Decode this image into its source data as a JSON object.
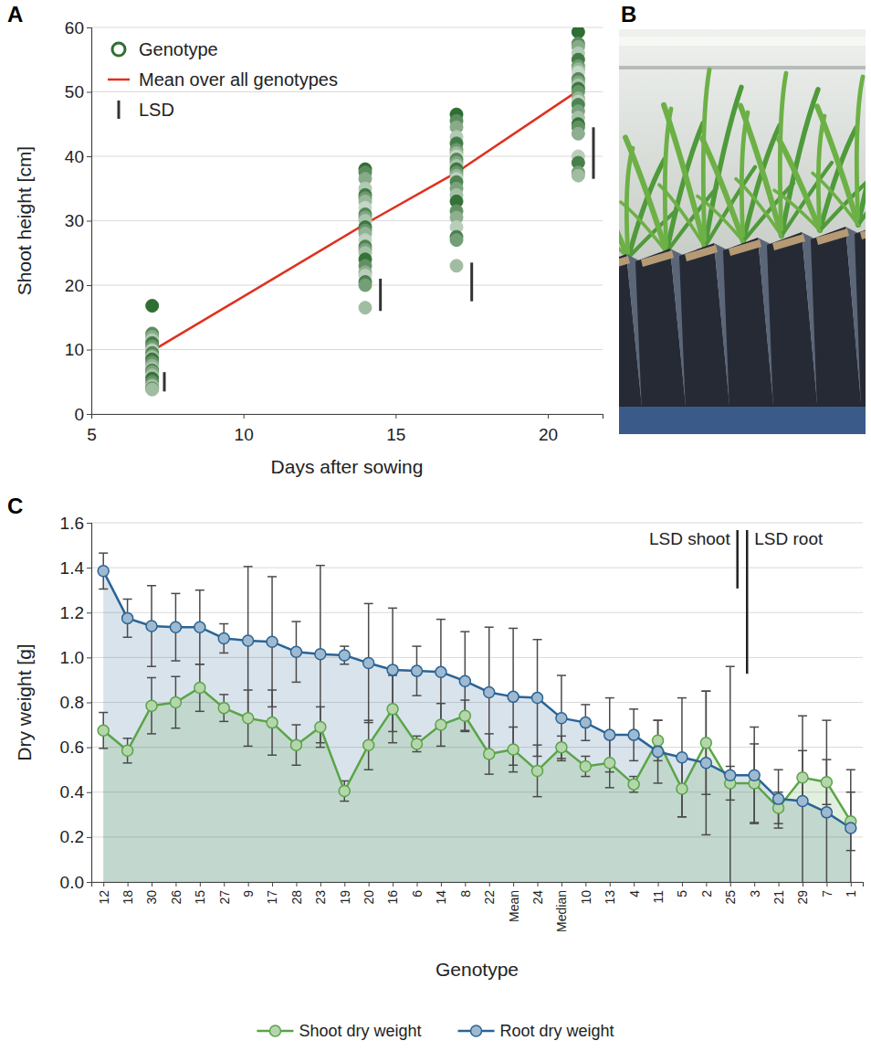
{
  "chart_data": [
    {
      "type": "scatter",
      "panel_label": "A",
      "x_label": "Days after sowing",
      "y_label": "Shoot height [cm]",
      "xlim": [
        5,
        21.8
      ],
      "xticks": [
        5,
        10,
        15,
        20
      ],
      "ylim": [
        0,
        60
      ],
      "yticks": [
        0,
        10,
        20,
        30,
        40,
        50,
        60
      ],
      "grid": true,
      "legend": "upper left",
      "series": [
        {
          "name": "Genotype",
          "type": "scatter",
          "marker": "circle",
          "color": "#2f6e32",
          "x": [
            7,
            7,
            7,
            7,
            7,
            7,
            7,
            7,
            7,
            7,
            7,
            7,
            7,
            7,
            7,
            7,
            7,
            7,
            7,
            7,
            7,
            7,
            7,
            7,
            7,
            14,
            14,
            14,
            14,
            14,
            14,
            14,
            14,
            14,
            14,
            14,
            14,
            14,
            14,
            14,
            14,
            14,
            14,
            14,
            14,
            14,
            14,
            14,
            14,
            14,
            17,
            17,
            17,
            17,
            17,
            17,
            17,
            17,
            17,
            17,
            17,
            17,
            17,
            17,
            17,
            17,
            17,
            17,
            17,
            17,
            17,
            17,
            17,
            17,
            17,
            21,
            21,
            21,
            21,
            21,
            21,
            21,
            21,
            21,
            21,
            21,
            21,
            21,
            21,
            21,
            21,
            21,
            21,
            21,
            21,
            21,
            21,
            21,
            21,
            21
          ],
          "values": [
            16.8,
            12.5,
            12,
            11.5,
            11,
            10.5,
            10,
            9.8,
            9.5,
            9,
            8.8,
            8.5,
            8,
            7.5,
            7,
            6.8,
            6.5,
            6,
            5.5,
            5,
            4.5,
            4.2,
            4,
            3.9,
            3.8,
            38,
            37.5,
            36.5,
            35,
            34,
            33.5,
            33,
            32,
            31,
            30.5,
            30,
            29,
            28.5,
            28,
            27,
            26,
            25.5,
            25,
            24,
            23,
            22,
            21.5,
            20.5,
            20,
            16.5,
            46.5,
            45.5,
            44.5,
            43,
            42,
            41,
            40.5,
            40,
            39.5,
            39,
            38.5,
            38,
            37.5,
            37,
            36.5,
            36,
            35,
            34,
            33,
            31.5,
            30.5,
            29,
            27.5,
            27,
            23,
            59.3,
            57.5,
            57,
            56,
            55,
            54,
            53.5,
            53,
            52,
            51.5,
            51,
            50.5,
            50,
            49,
            48.5,
            48,
            47,
            46,
            45,
            44.5,
            43.5,
            40,
            39,
            37.5,
            37
          ]
        },
        {
          "name": "Mean over all genotypes",
          "type": "line",
          "color": "#e0301e",
          "x": [
            7,
            14,
            17,
            21
          ],
          "values": [
            9.8,
            29.5,
            37.5,
            50.2
          ]
        }
      ],
      "lsd": {
        "name": "LSD",
        "x": [
          7.4,
          14.5,
          17.5,
          21.5
        ],
        "lower": [
          3.5,
          16,
          17.5,
          36.5
        ],
        "upper": [
          6.5,
          21,
          23.5,
          44.5
        ]
      }
    },
    {
      "type": "line",
      "panel_label": "C",
      "x_label": "Genotype",
      "y_label": "Dry weight [g]",
      "categories": [
        "12",
        "18",
        "30",
        "26",
        "15",
        "27",
        "9",
        "17",
        "28",
        "23",
        "19",
        "20",
        "16",
        "6",
        "14",
        "8",
        "22",
        "Mean",
        "24",
        "Median",
        "10",
        "13",
        "4",
        "11",
        "5",
        "2",
        "25",
        "3",
        "21",
        "29",
        "7",
        "1"
      ],
      "ylim": [
        0,
        1.6
      ],
      "yticks": [
        {
          "value": 0,
          "label": "0.0"
        },
        0.2,
        0.4,
        0.6,
        0.8,
        {
          "value": 1,
          "label": "1.0"
        },
        1.2,
        1.4,
        1.6
      ],
      "grid": true,
      "legend": "bottom",
      "series": [
        {
          "name": "Shoot dry weight",
          "type": "area",
          "marker": "circle",
          "color": "#5aa447",
          "values": [
            0.675,
            0.585,
            0.785,
            0.8,
            0.865,
            0.775,
            0.73,
            0.71,
            0.61,
            0.69,
            0.405,
            0.61,
            0.77,
            0.615,
            0.7,
            0.74,
            0.57,
            0.59,
            0.495,
            0.6,
            0.515,
            0.53,
            0.435,
            0.63,
            0.415,
            0.62,
            0.44,
            0.44,
            0.33,
            0.465,
            0.445,
            0.27
          ],
          "errors": [
            0.08,
            0.055,
            0.125,
            0.115,
            0.105,
            0.06,
            0.125,
            0.145,
            0.09,
            0.09,
            0.045,
            0.11,
            0.15,
            0.035,
            0.095,
            0.07,
            0.09,
            0.1,
            0.115,
            0.05,
            0.045,
            0.11,
            0.035,
            0.09,
            0.125,
            0.23,
            0.075,
            0.175,
            0.07,
            0.12,
            0.1,
            0.13
          ]
        },
        {
          "name": "Root dry weight",
          "type": "area",
          "marker": "circle",
          "color": "#2a6496",
          "values": [
            1.385,
            1.175,
            1.14,
            1.135,
            1.135,
            1.085,
            1.075,
            1.07,
            1.025,
            1.015,
            1.01,
            0.975,
            0.945,
            0.94,
            0.935,
            0.895,
            0.845,
            0.825,
            0.82,
            0.73,
            0.71,
            0.655,
            0.655,
            0.58,
            0.555,
            0.53,
            0.475,
            0.475,
            0.37,
            0.36,
            0.31,
            0.24
          ],
          "errors": [
            0.08,
            0.085,
            0.18,
            0.15,
            0.165,
            0.065,
            0.33,
            0.29,
            0.135,
            0.395,
            0.04,
            0.265,
            0.275,
            0.11,
            0.235,
            0.22,
            0.29,
            0.305,
            0.26,
            0.19,
            0.08,
            0.165,
            0.115,
            0.14,
            0.265,
            0.32,
            0.485,
            0.215,
            0.13,
            0.38,
            0.41,
            0.26
          ]
        }
      ],
      "lsd": [
        {
          "name": "LSD shoot",
          "value": 0.26
        },
        {
          "name": "LSD root",
          "value": 0.64
        }
      ]
    }
  ],
  "photo": {
    "panel_label": "B"
  }
}
